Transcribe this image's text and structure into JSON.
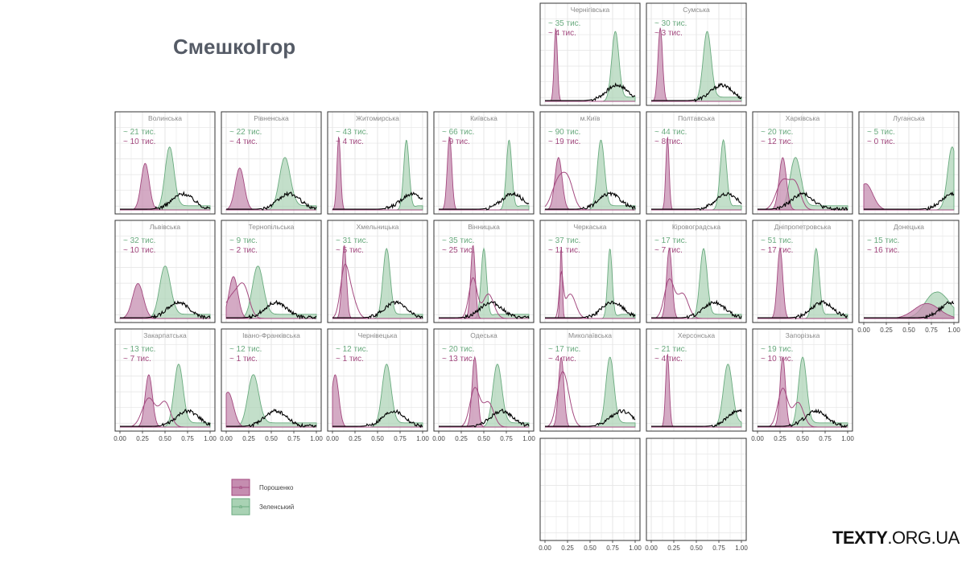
{
  "title": "СмешкоІгор",
  "brand": {
    "main": "TEXTY",
    "tld": ".ORG.UA"
  },
  "legend": [
    {
      "name": "Порошенко",
      "color": "#a3497f",
      "fill": "#c58db0",
      "glyph": "a"
    },
    {
      "name": "Зеленський",
      "color": "#6aab7f",
      "fill": "#a9d2b4",
      "glyph": "a"
    }
  ],
  "colors": {
    "line": "#000000",
    "grid": "#e4e4e4",
    "border": "#333333",
    "label": "#8a8a8a"
  },
  "chart_data": {
    "type": "area",
    "xlim": [
      0,
      1
    ],
    "x_ticks": [
      "0.00",
      "0.25",
      "0.50",
      "0.75",
      "1.00"
    ],
    "grid": true,
    "legend_position": "bottom-left",
    "panels": [
      {
        "region": "Чернігівська",
        "row": 0,
        "col": 4,
        "z_count": "35",
        "p_count": "4",
        "p_peak": 0.12,
        "p_spread": 0.018,
        "p_second": null,
        "z_peak": 0.78,
        "z_spread": 0.04,
        "line_peak": 0.8
      },
      {
        "region": "Сумська",
        "row": 0,
        "col": 5,
        "z_count": "30",
        "p_count": "3",
        "p_peak": 0.1,
        "p_spread": 0.025,
        "p_second": null,
        "z_peak": 0.62,
        "z_spread": 0.045,
        "line_peak": 0.78
      },
      {
        "region": "Волинська",
        "row": 1,
        "col": 0,
        "z_count": "21",
        "p_count": "10",
        "p_peak": 0.28,
        "p_spread": 0.045,
        "p_second": null,
        "z_peak": 0.55,
        "z_spread": 0.05,
        "line_peak": 0.7
      },
      {
        "region": "Рівненська",
        "row": 1,
        "col": 1,
        "z_count": "22",
        "p_count": "4",
        "p_peak": 0.15,
        "p_spread": 0.05,
        "p_second": null,
        "z_peak": 0.65,
        "z_spread": 0.06,
        "line_peak": 0.7
      },
      {
        "region": "Житомирська",
        "row": 1,
        "col": 2,
        "z_count": "43",
        "p_count": "4",
        "p_peak": 0.07,
        "p_spread": 0.02,
        "p_second": null,
        "z_peak": 0.82,
        "z_spread": 0.03,
        "line_peak": 0.88
      },
      {
        "region": "Київська",
        "row": 1,
        "col": 3,
        "z_count": "66",
        "p_count": "9",
        "p_peak": 0.12,
        "p_spread": 0.025,
        "p_second": null,
        "z_peak": 0.78,
        "z_spread": 0.03,
        "line_peak": 0.82
      },
      {
        "region": "м.Київ",
        "row": 1,
        "col": 4,
        "z_count": "90",
        "p_count": "19",
        "p_peak": 0.15,
        "p_spread": 0.04,
        "p_second": 0.26,
        "z_peak": 0.62,
        "z_spread": 0.04,
        "line_peak": 0.72
      },
      {
        "region": "Полтавська",
        "row": 1,
        "col": 5,
        "z_count": "44",
        "p_count": "8",
        "p_peak": 0.18,
        "p_spread": 0.018,
        "p_second": null,
        "z_peak": 0.8,
        "z_spread": 0.035,
        "line_peak": 0.84
      },
      {
        "region": "Харківська",
        "row": 1,
        "col": 6,
        "z_count": "20",
        "p_count": "12",
        "p_peak": 0.28,
        "p_spread": 0.04,
        "p_second": 0.42,
        "z_peak": 0.42,
        "z_spread": 0.06,
        "line_peak": 0.5
      },
      {
        "region": "Луганська",
        "row": 1,
        "col": 7,
        "z_count": "5",
        "p_count": "0",
        "p_peak": 0.02,
        "p_spread": 0.08,
        "p_second": null,
        "z_peak": 0.98,
        "z_spread": 0.05,
        "line_peak": 0.99
      },
      {
        "region": "Львівська",
        "row": 2,
        "col": 0,
        "z_count": "32",
        "p_count": "10",
        "p_peak": 0.2,
        "p_spread": 0.06,
        "p_second": null,
        "z_peak": 0.5,
        "z_spread": 0.06,
        "line_peak": 0.65
      },
      {
        "region": "Тернопільська",
        "row": 2,
        "col": 1,
        "z_count": "9",
        "p_count": "2",
        "p_peak": 0.08,
        "p_spread": 0.05,
        "p_second": 0.2,
        "z_peak": 0.35,
        "z_spread": 0.06,
        "line_peak": 0.55
      },
      {
        "region": "Хмельницька",
        "row": 2,
        "col": 2,
        "z_count": "31",
        "p_count": "5",
        "p_peak": 0.13,
        "p_spread": 0.025,
        "p_second": 0.2,
        "z_peak": 0.6,
        "z_spread": 0.04,
        "line_peak": 0.7
      },
      {
        "region": "Вінницька",
        "row": 2,
        "col": 3,
        "z_count": "35",
        "p_count": "25",
        "p_peak": 0.38,
        "p_spread": 0.025,
        "p_second": 0.55,
        "z_peak": 0.5,
        "z_spread": 0.03,
        "line_peak": 0.58
      },
      {
        "region": "Черкаська",
        "row": 2,
        "col": 4,
        "z_count": "37",
        "p_count": "11",
        "p_peak": 0.18,
        "p_spread": 0.012,
        "p_second": 0.28,
        "z_peak": 0.72,
        "z_spread": 0.025,
        "line_peak": 0.75
      },
      {
        "region": "Кіровоградська",
        "row": 2,
        "col": 5,
        "z_count": "17",
        "p_count": "7",
        "p_peak": 0.2,
        "p_spread": 0.03,
        "p_second": 0.35,
        "z_peak": 0.58,
        "z_spread": 0.04,
        "line_peak": 0.7
      },
      {
        "region": "Дніпропетровська",
        "row": 2,
        "col": 6,
        "z_count": "51",
        "p_count": "17",
        "p_peak": 0.25,
        "p_spread": 0.03,
        "p_second": null,
        "z_peak": 0.65,
        "z_spread": 0.035,
        "line_peak": 0.72
      },
      {
        "region": "Донецька",
        "row": 2,
        "col": 7,
        "z_count": "15",
        "p_count": "16",
        "p_peak": 0.7,
        "p_spread": 0.14,
        "p_second": null,
        "z_peak": 0.8,
        "z_spread": 0.12,
        "line_peak": 0.97
      },
      {
        "region": "Закарпатська",
        "row": 3,
        "col": 0,
        "z_count": "13",
        "p_count": "7",
        "p_peak": 0.32,
        "p_spread": 0.04,
        "p_second": 0.5,
        "z_peak": 0.65,
        "z_spread": 0.05,
        "line_peak": 0.75
      },
      {
        "region": "Івано-Франківська",
        "row": 3,
        "col": 1,
        "z_count": "12",
        "p_count": "1",
        "p_peak": 0.02,
        "p_spread": 0.06,
        "p_second": null,
        "z_peak": 0.3,
        "z_spread": 0.06,
        "line_peak": 0.55
      },
      {
        "region": "Чернівецька",
        "row": 3,
        "col": 2,
        "z_count": "12",
        "p_count": "1",
        "p_peak": 0.03,
        "p_spread": 0.04,
        "p_second": null,
        "z_peak": 0.6,
        "z_spread": 0.05,
        "line_peak": 0.68
      },
      {
        "region": "Одеська",
        "row": 3,
        "col": 3,
        "z_count": "20",
        "p_count": "13",
        "p_peak": 0.4,
        "p_spread": 0.03,
        "p_second": 0.55,
        "z_peak": 0.65,
        "z_spread": 0.05,
        "line_peak": 0.7
      },
      {
        "region": "Миколаївська",
        "row": 3,
        "col": 4,
        "z_count": "17",
        "p_count": "4",
        "p_peak": 0.18,
        "p_spread": 0.03,
        "p_second": 0.24,
        "z_peak": 0.72,
        "z_spread": 0.045,
        "line_peak": 0.85
      },
      {
        "region": "Херсонська",
        "row": 3,
        "col": 5,
        "z_count": "21",
        "p_count": "4",
        "p_peak": 0.18,
        "p_spread": 0.02,
        "p_second": null,
        "z_peak": 0.85,
        "z_spread": 0.05,
        "line_peak": 0.97
      },
      {
        "region": "Запорізька",
        "row": 3,
        "col": 6,
        "z_count": "19",
        "p_count": "10",
        "p_peak": 0.28,
        "p_spread": 0.03,
        "p_second": 0.45,
        "z_peak": 0.5,
        "z_spread": 0.045,
        "line_peak": 0.65
      },
      {
        "region": "",
        "row": 4,
        "col": 4,
        "empty": true
      },
      {
        "region": "",
        "row": 4,
        "col": 5,
        "empty": true
      }
    ],
    "label_format": {
      "prefix": "~ ",
      "suffix": "  тис."
    }
  }
}
